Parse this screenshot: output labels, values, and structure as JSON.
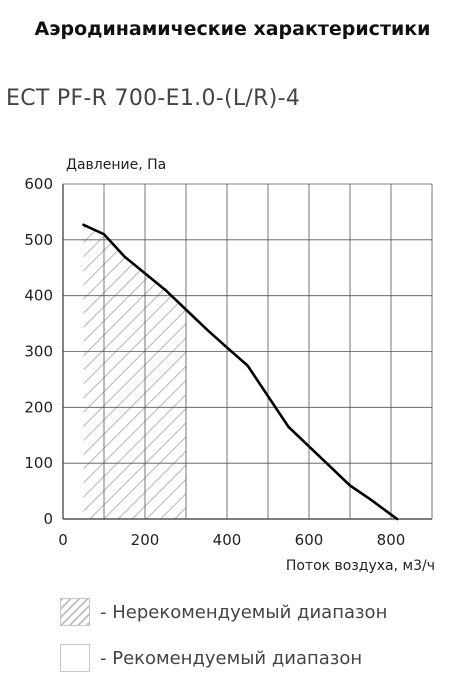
{
  "header": {
    "title": "Аэродинамические характеристики",
    "model": "ECT PF-R 700-E1.0-(L/R)-4"
  },
  "chart_data": {
    "type": "line",
    "ylabel": "Давление, Па",
    "xlabel": "Поток воздуха, м3/ч",
    "xlim": [
      0,
      900
    ],
    "ylim": [
      0,
      600
    ],
    "x_ticks": [
      0,
      200,
      400,
      600,
      800
    ],
    "x_tick_labels": [
      "0",
      "200",
      "400",
      "600",
      "800"
    ],
    "y_ticks": [
      0,
      100,
      200,
      300,
      400,
      500,
      600
    ],
    "y_tick_labels": [
      "0",
      "100",
      "200",
      "300",
      "400",
      "500",
      "600"
    ],
    "x_grid": [
      100,
      200,
      300,
      400,
      500,
      600,
      700,
      800,
      900
    ],
    "y_grid": [
      100,
      200,
      300,
      400,
      500,
      600
    ],
    "grid": true,
    "series": [
      {
        "values": [
          [
            50,
            527
          ],
          [
            100,
            510
          ],
          [
            150,
            470
          ],
          [
            200,
            440
          ],
          [
            250,
            410
          ],
          [
            300,
            375
          ],
          [
            350,
            340
          ],
          [
            400,
            307
          ],
          [
            450,
            275
          ],
          [
            500,
            220
          ],
          [
            550,
            165
          ],
          [
            600,
            130
          ],
          [
            650,
            95
          ],
          [
            700,
            60
          ],
          [
            750,
            35
          ],
          [
            800,
            8
          ],
          [
            815,
            0
          ]
        ],
        "color": "#000000"
      }
    ],
    "non_recommended_range": {
      "x_from": 50,
      "x_to": 300
    }
  },
  "legend": [
    {
      "label": "- Нерекомендуемый диапазон",
      "style": "hatched"
    },
    {
      "label": "- Рекомендуемый диапазон",
      "style": "plain"
    }
  ]
}
